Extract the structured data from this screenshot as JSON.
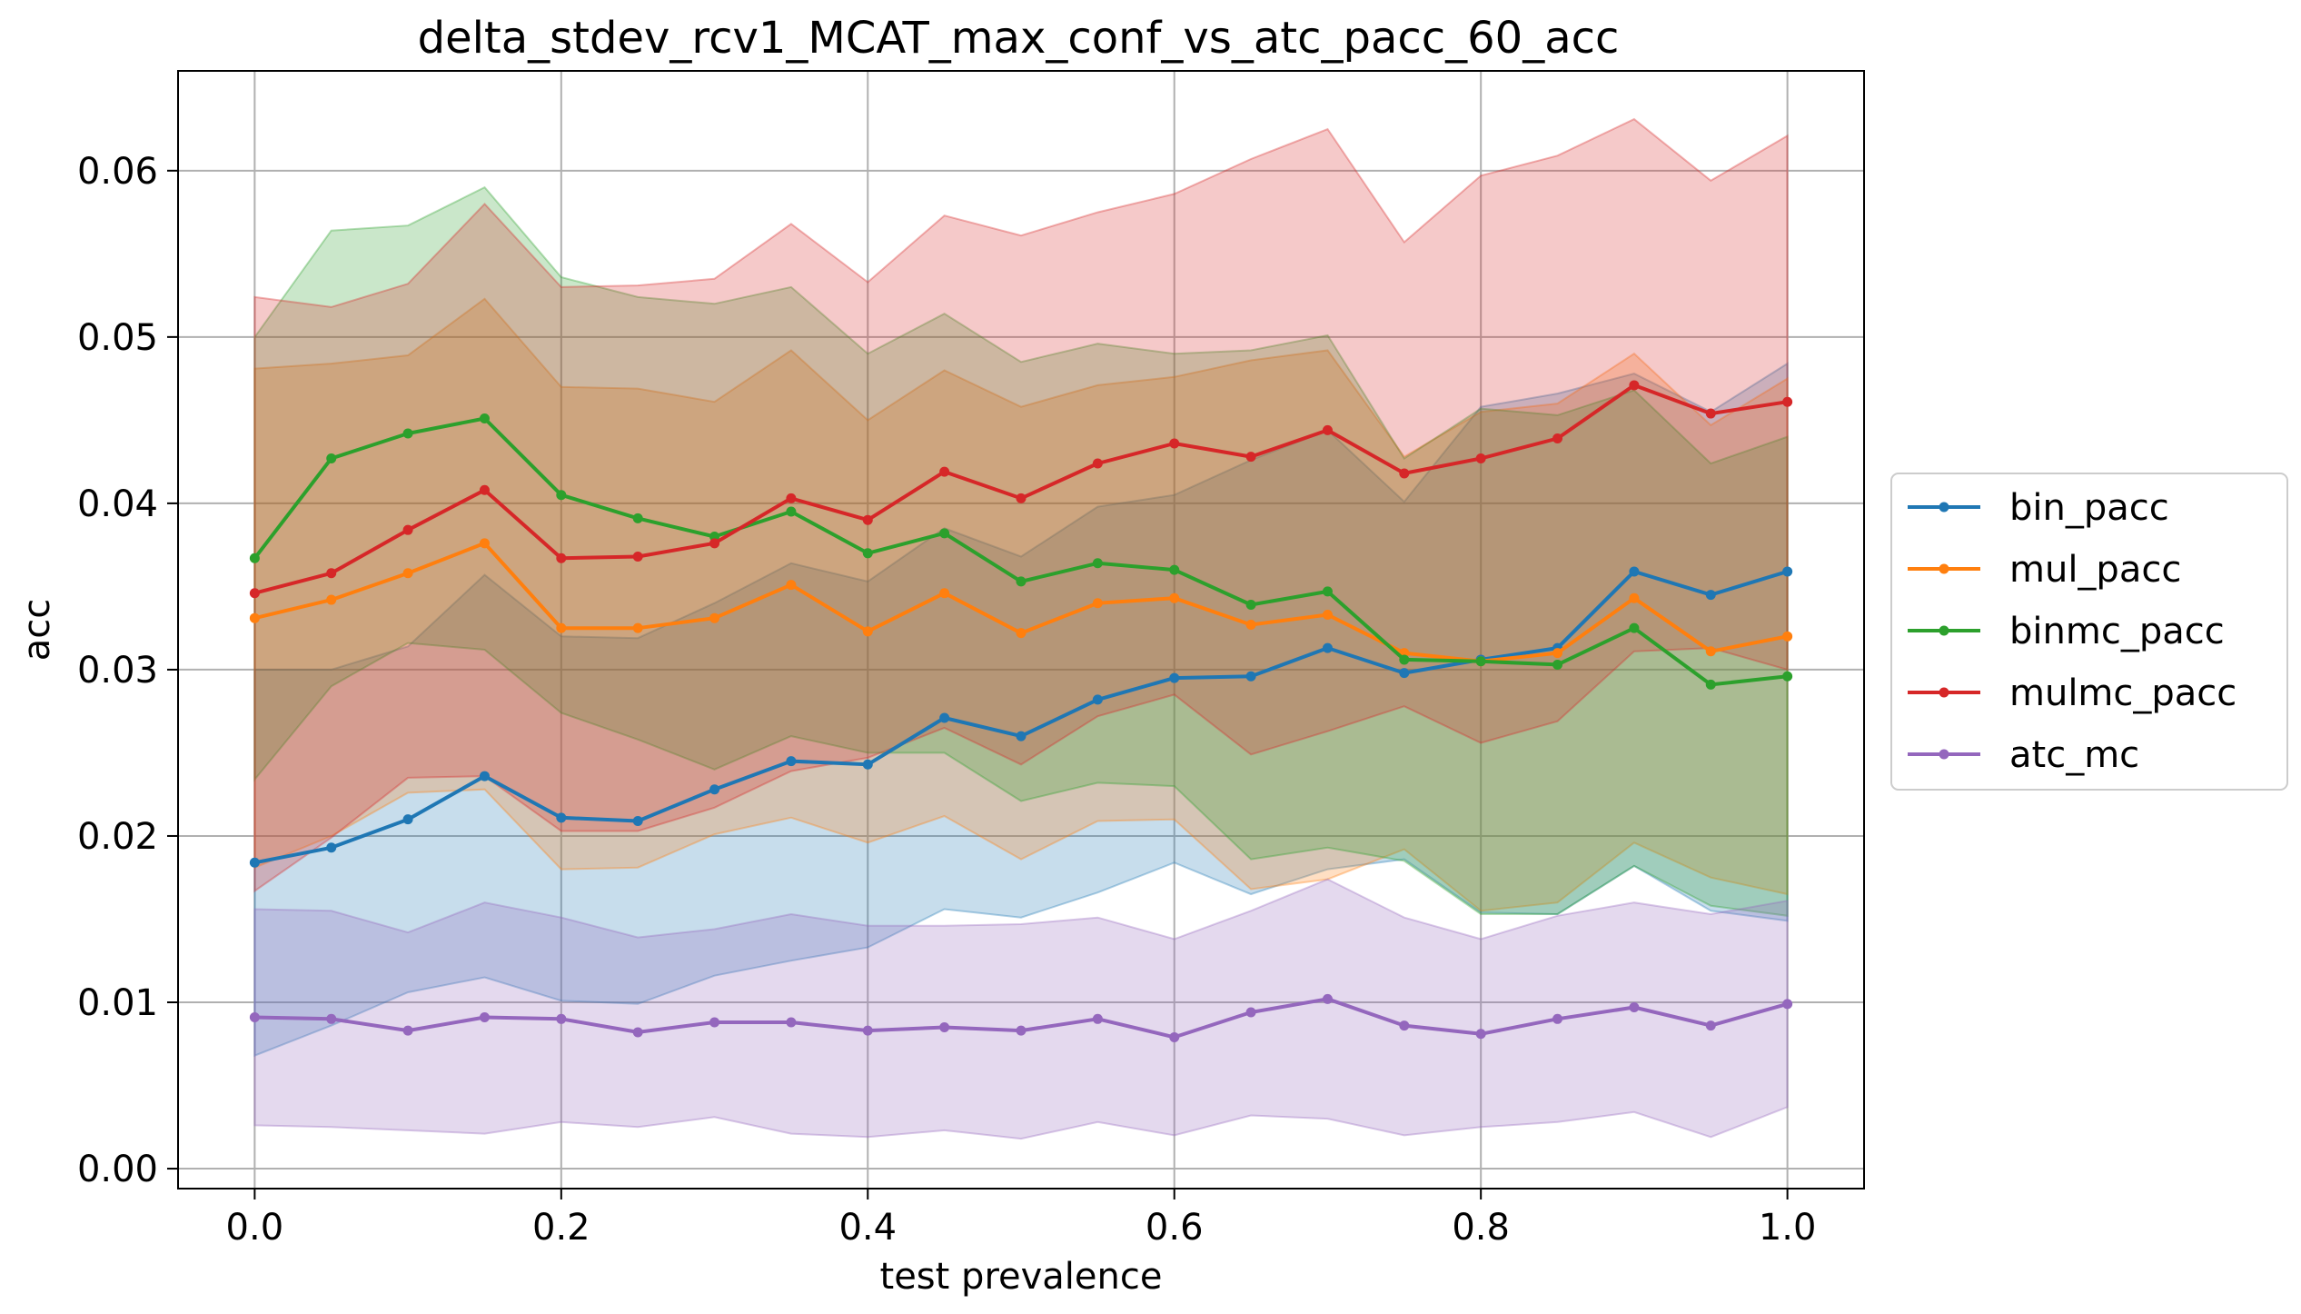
{
  "chart_data": {
    "type": "line",
    "title": "delta_stdev_rcv1_MCAT_max_conf_vs_atc_pacc_60_acc",
    "xlabel": "test prevalence",
    "ylabel": "acc",
    "xlim": [
      -0.05,
      1.05
    ],
    "ylim": [
      -0.0012,
      0.066
    ],
    "xticks": [
      0.0,
      0.2,
      0.4,
      0.6,
      0.8,
      1.0
    ],
    "xtick_labels": [
      "0.0",
      "0.2",
      "0.4",
      "0.6",
      "0.8",
      "1.0"
    ],
    "yticks": [
      0.0,
      0.01,
      0.02,
      0.03,
      0.04,
      0.05,
      0.06
    ],
    "ytick_labels": [
      "0.00",
      "0.01",
      "0.02",
      "0.03",
      "0.04",
      "0.05",
      "0.06"
    ],
    "grid": true,
    "legend_position": "center right outside",
    "x": [
      0.0,
      0.05,
      0.1,
      0.15,
      0.2,
      0.25,
      0.3,
      0.35,
      0.4,
      0.45,
      0.5,
      0.55,
      0.6,
      0.65,
      0.7,
      0.75,
      0.8,
      0.85,
      0.9,
      0.95,
      1.0
    ],
    "series": [
      {
        "name": "bin_pacc",
        "color": "#1f77b4",
        "values": [
          0.0184,
          0.0193,
          0.021,
          0.0236,
          0.0211,
          0.0209,
          0.0228,
          0.0245,
          0.0243,
          0.0271,
          0.026,
          0.0282,
          0.0295,
          0.0296,
          0.0313,
          0.0298,
          0.0306,
          0.0313,
          0.0359,
          0.0345,
          0.0359
        ],
        "lower": [
          0.0068,
          0.0086,
          0.0106,
          0.0115,
          0.0101,
          0.0099,
          0.0116,
          0.0125,
          0.0133,
          0.0156,
          0.0151,
          0.0166,
          0.0184,
          0.0165,
          0.018,
          0.0186,
          0.0154,
          0.0153,
          0.0182,
          0.0155,
          0.0149
        ],
        "upper": [
          0.03,
          0.03,
          0.0314,
          0.0357,
          0.032,
          0.0319,
          0.034,
          0.0364,
          0.0353,
          0.0385,
          0.0368,
          0.0398,
          0.0405,
          0.0426,
          0.0444,
          0.0401,
          0.0458,
          0.0466,
          0.0478,
          0.0455,
          0.0484
        ]
      },
      {
        "name": "mul_pacc",
        "color": "#ff7f0e",
        "values": [
          0.0331,
          0.0342,
          0.0358,
          0.0376,
          0.0325,
          0.0325,
          0.0331,
          0.0351,
          0.0323,
          0.0346,
          0.0322,
          0.034,
          0.0343,
          0.0327,
          0.0333,
          0.031,
          0.0305,
          0.031,
          0.0343,
          0.0311,
          0.032
        ],
        "lower": [
          0.0181,
          0.02,
          0.0226,
          0.0228,
          0.018,
          0.0181,
          0.0201,
          0.0211,
          0.0196,
          0.0212,
          0.0186,
          0.0209,
          0.021,
          0.0168,
          0.0174,
          0.0192,
          0.0155,
          0.016,
          0.0196,
          0.0175,
          0.0165
        ],
        "upper": [
          0.0481,
          0.0484,
          0.0489,
          0.0523,
          0.047,
          0.0469,
          0.0461,
          0.0492,
          0.045,
          0.048,
          0.0458,
          0.0471,
          0.0476,
          0.0486,
          0.0492,
          0.0428,
          0.0455,
          0.046,
          0.049,
          0.0447,
          0.0475
        ]
      },
      {
        "name": "binmc_pacc",
        "color": "#2ca02c",
        "values": [
          0.0367,
          0.0427,
          0.0442,
          0.0451,
          0.0405,
          0.0391,
          0.038,
          0.0395,
          0.037,
          0.0382,
          0.0353,
          0.0364,
          0.036,
          0.0339,
          0.0347,
          0.0306,
          0.0305,
          0.0303,
          0.0325,
          0.0291,
          0.0296
        ],
        "lower": [
          0.0234,
          0.029,
          0.0316,
          0.0312,
          0.0274,
          0.0258,
          0.024,
          0.026,
          0.025,
          0.025,
          0.0221,
          0.0232,
          0.023,
          0.0186,
          0.0193,
          0.0185,
          0.0153,
          0.0153,
          0.0182,
          0.0158,
          0.0152
        ],
        "upper": [
          0.05,
          0.0564,
          0.0567,
          0.059,
          0.0536,
          0.0524,
          0.052,
          0.053,
          0.049,
          0.0514,
          0.0485,
          0.0496,
          0.049,
          0.0492,
          0.0501,
          0.0427,
          0.0457,
          0.0453,
          0.0468,
          0.0424,
          0.044
        ]
      },
      {
        "name": "mulmc_pacc",
        "color": "#d62728",
        "values": [
          0.0346,
          0.0358,
          0.0384,
          0.0408,
          0.0367,
          0.0368,
          0.0376,
          0.0403,
          0.039,
          0.0419,
          0.0403,
          0.0424,
          0.0436,
          0.0428,
          0.0444,
          0.0418,
          0.0427,
          0.0439,
          0.0471,
          0.0454,
          0.0461
        ],
        "lower": [
          0.0167,
          0.0199,
          0.0235,
          0.0236,
          0.0203,
          0.0203,
          0.0217,
          0.0239,
          0.0247,
          0.0265,
          0.0243,
          0.0272,
          0.0285,
          0.0249,
          0.0263,
          0.0278,
          0.0256,
          0.0269,
          0.0311,
          0.0313,
          0.03
        ],
        "upper": [
          0.0524,
          0.0518,
          0.0532,
          0.058,
          0.053,
          0.0531,
          0.0535,
          0.0568,
          0.0533,
          0.0573,
          0.0561,
          0.0575,
          0.0586,
          0.0607,
          0.0625,
          0.0557,
          0.0597,
          0.0609,
          0.0631,
          0.0594,
          0.0621
        ]
      },
      {
        "name": "atc_mc",
        "color": "#9467bd",
        "values": [
          0.0091,
          0.009,
          0.0083,
          0.0091,
          0.009,
          0.0082,
          0.0088,
          0.0088,
          0.0083,
          0.0085,
          0.0083,
          0.009,
          0.0079,
          0.0094,
          0.0102,
          0.0086,
          0.0081,
          0.009,
          0.0097,
          0.0086,
          0.0099
        ],
        "lower": [
          0.0026,
          0.0025,
          0.0023,
          0.0021,
          0.0028,
          0.0025,
          0.0031,
          0.0021,
          0.0019,
          0.0023,
          0.0018,
          0.0028,
          0.002,
          0.0032,
          0.003,
          0.002,
          0.0025,
          0.0028,
          0.0034,
          0.0019,
          0.0037
        ],
        "upper": [
          0.0156,
          0.0155,
          0.0142,
          0.016,
          0.0151,
          0.0139,
          0.0144,
          0.0153,
          0.0146,
          0.0146,
          0.0147,
          0.0151,
          0.0138,
          0.0155,
          0.0174,
          0.0151,
          0.0138,
          0.0152,
          0.016,
          0.0153,
          0.0161
        ]
      }
    ]
  }
}
